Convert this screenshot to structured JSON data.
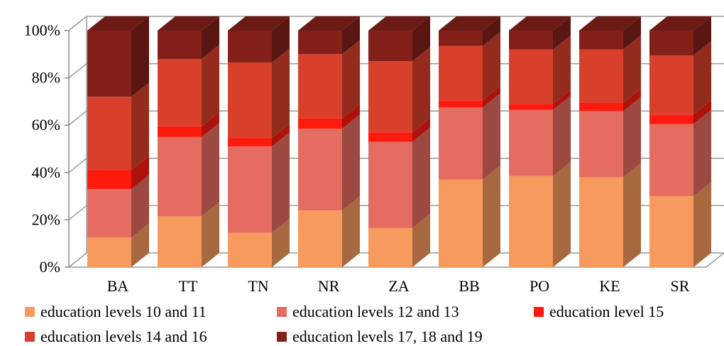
{
  "chart_data": {
    "type": "bar",
    "stacked": true,
    "normalized_percent": true,
    "categories": [
      "BA",
      "TT",
      "TN",
      "NR",
      "ZA",
      "BB",
      "PO",
      "KE",
      "SR"
    ],
    "y_ticks": [
      "0%",
      "20%",
      "40%",
      "60%",
      "80%",
      "100%"
    ],
    "ylim": [
      0,
      100
    ],
    "grid": true,
    "legend_position": "bottom",
    "series": [
      {
        "name": "education levels 10 and 11",
        "color": "#F79A5E",
        "values": [
          12.5,
          21.5,
          14.5,
          24,
          16.5,
          37,
          38.5,
          38,
          30
        ]
      },
      {
        "name": "education levels 12 and 13",
        "color": "#E46C60",
        "values": [
          20.5,
          33.5,
          36.5,
          34.5,
          36.5,
          30.5,
          28,
          28,
          30.5
        ]
      },
      {
        "name": "education level 15",
        "color": "#FF1A10",
        "values": [
          8,
          4.5,
          3.5,
          4.5,
          4,
          3,
          2.5,
          3.5,
          4
        ]
      },
      {
        "name": "education levels 14 and 16",
        "color": "#D9402C",
        "values": [
          31,
          28.5,
          32,
          27,
          30,
          23,
          23,
          22.5,
          25
        ]
      },
      {
        "name": "education levels 17, 18 and 19",
        "color": "#84201A",
        "values": [
          28,
          12,
          13.5,
          10,
          13,
          6.5,
          8,
          8,
          10.5
        ]
      }
    ]
  }
}
